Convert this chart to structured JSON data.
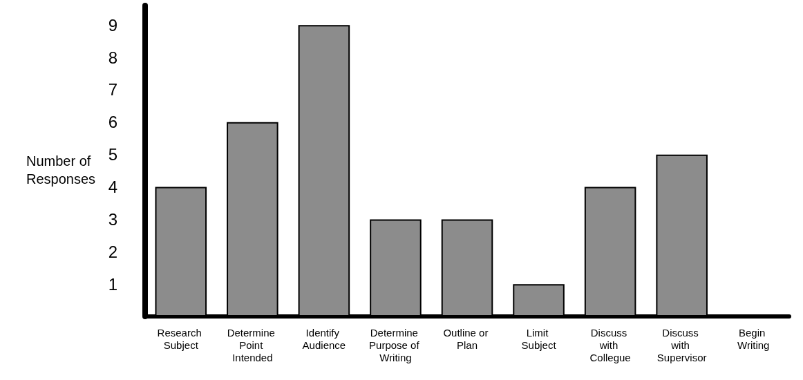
{
  "chart_data": {
    "type": "bar",
    "ylabel": "Number of Responses",
    "categories": [
      "Research Subject",
      "Determine Point Intended",
      "Identify Audience",
      "Determine Purpose of Writing",
      "Outline or Plan",
      "Limit Subject",
      "Discuss with Collegue",
      "Discuss with Supervisor",
      "Begin Writing"
    ],
    "values": [
      4,
      6,
      9,
      3,
      3,
      1,
      4,
      5,
      0
    ],
    "color": "#8c8c8c",
    "ylim": [
      0,
      9.6
    ],
    "yticks": [
      1,
      2,
      3,
      4,
      5,
      6,
      7,
      8,
      9
    ],
    "grid": false
  }
}
